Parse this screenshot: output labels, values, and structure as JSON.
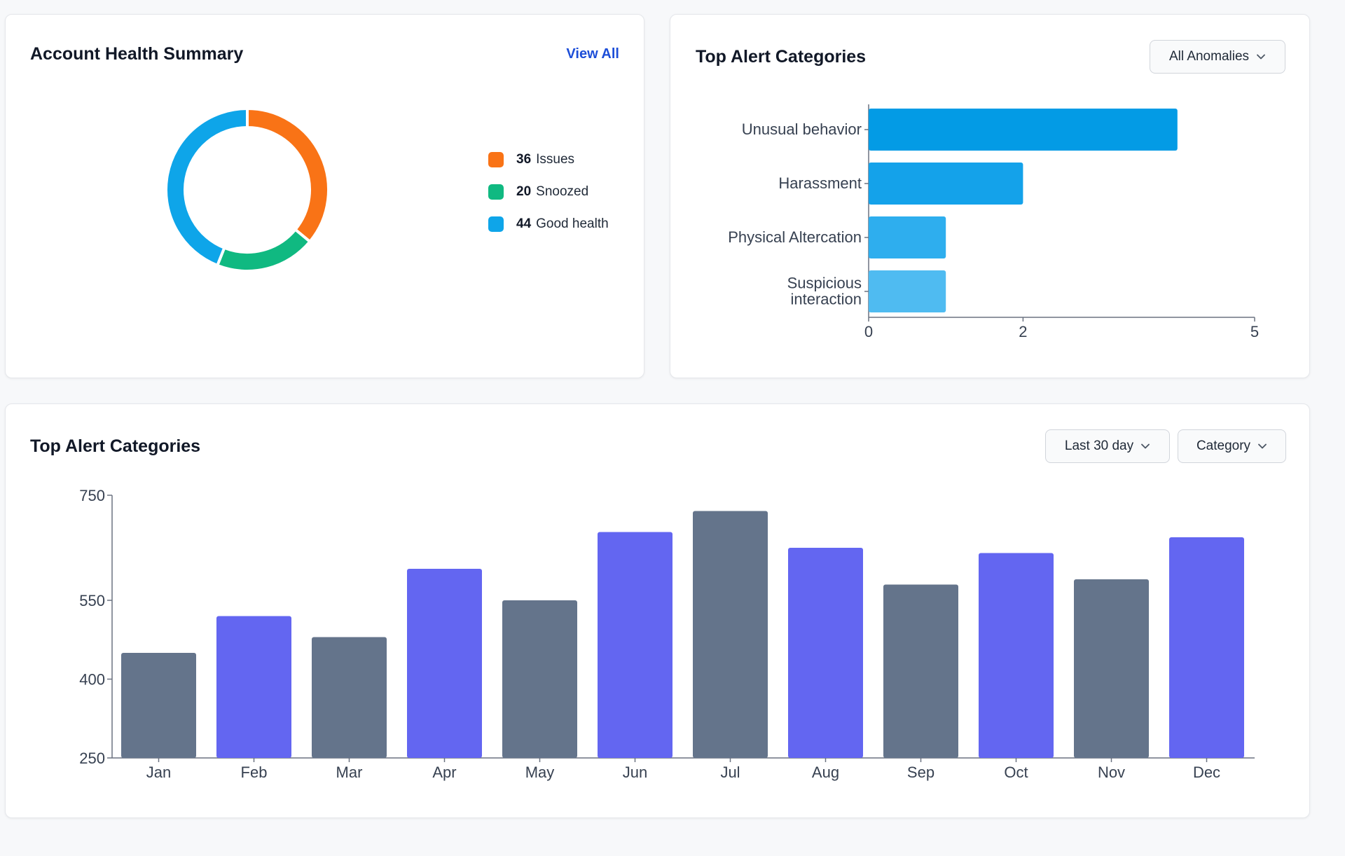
{
  "health": {
    "title": "Account Health Summary",
    "view_all": "View All",
    "legend": [
      {
        "count": "36",
        "label": "Issues",
        "color": "#f97316"
      },
      {
        "count": "20",
        "label": "Snoozed",
        "color": "#10b981"
      },
      {
        "count": "44",
        "label": "Good health",
        "color": "#0ea5e9"
      }
    ]
  },
  "categories_card": {
    "title": "Top Alert Categories",
    "filter": "All Anomalies"
  },
  "monthly_card": {
    "title": "Top Alert Categories",
    "filter_range": "Last 30 day",
    "filter_category": "Category"
  },
  "chart_data": [
    {
      "type": "pie",
      "variant": "donut",
      "labels": [
        "Issues",
        "Snoozed",
        "Good health"
      ],
      "values": [
        36,
        20,
        44
      ],
      "colors": [
        "#f97316",
        "#10b981",
        "#0ea5e9"
      ]
    },
    {
      "type": "bar",
      "orientation": "horizontal",
      "categories": [
        [
          "Unusual behavior"
        ],
        [
          "Harassment"
        ],
        [
          "Physical Altercation"
        ],
        [
          "Suspicious",
          "interaction"
        ]
      ],
      "values": [
        4,
        2,
        1,
        1
      ],
      "colors": [
        "#039be5",
        "#14a2ea",
        "#2eaeee",
        "#4fbbf1"
      ],
      "xlim": [
        0,
        5
      ],
      "xticks": [
        0,
        2,
        5
      ]
    },
    {
      "type": "bar",
      "categories": [
        "Jan",
        "Feb",
        "Mar",
        "Apr",
        "May",
        "Jun",
        "Jul",
        "Aug",
        "Sep",
        "Oct",
        "Nov",
        "Dec"
      ],
      "values": [
        450,
        520,
        480,
        610,
        550,
        680,
        720,
        650,
        580,
        640,
        590,
        670
      ],
      "colors": [
        "#64748b",
        "#6366f1",
        "#64748b",
        "#6366f1",
        "#64748b",
        "#6366f1",
        "#64748b",
        "#6366f1",
        "#64748b",
        "#6366f1",
        "#64748b",
        "#6366f1"
      ],
      "ylim": [
        250,
        750
      ],
      "yticks": [
        250,
        400,
        550,
        750
      ]
    }
  ]
}
